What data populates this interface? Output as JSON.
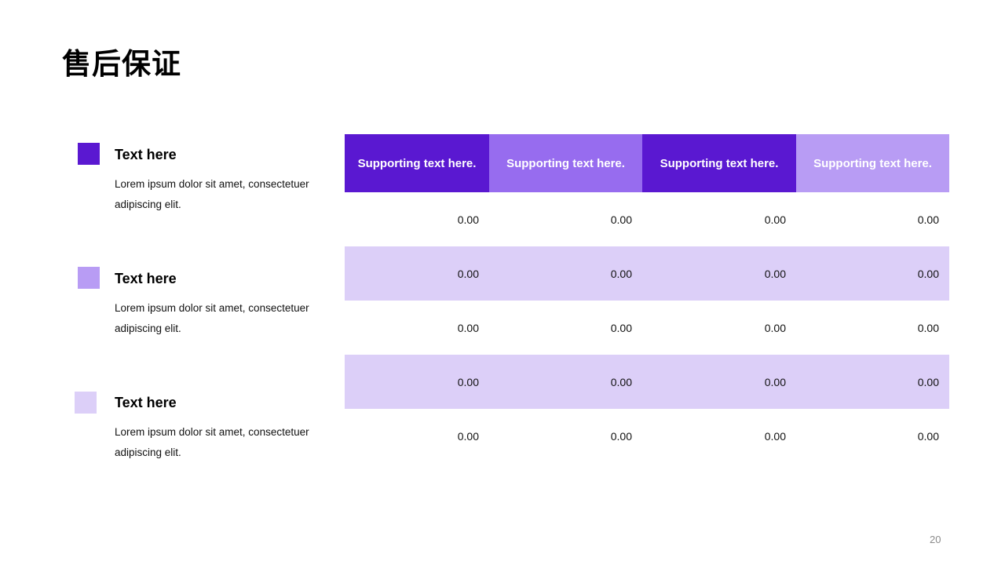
{
  "slide": {
    "title": "售后保证",
    "page_number": "20"
  },
  "legend": {
    "items": [
      {
        "heading": "Text here",
        "description": "Lorem ipsum dolor sit amet, consectetuer adipiscing elit.",
        "color": "#5a18d1"
      },
      {
        "heading": "Text here",
        "description": "Lorem ipsum dolor sit amet, consectetuer adipiscing elit.",
        "color": "#b89cf4"
      },
      {
        "heading": "Text here",
        "description": "Lorem ipsum dolor sit amet, consectetuer adipiscing elit.",
        "color": "#dccff8"
      }
    ]
  },
  "table": {
    "headers": [
      {
        "label": "Supporting text here.",
        "color": "#5a18d1"
      },
      {
        "label": "Supporting text here.",
        "color": "#976cef"
      },
      {
        "label": "Supporting text here.",
        "color": "#5a18d1"
      },
      {
        "label": "Supporting text here.",
        "color": "#b89cf4"
      }
    ],
    "shaded_row_color": "#dccff8",
    "rows": [
      [
        "0.00",
        "0.00",
        "0.00",
        "0.00"
      ],
      [
        "0.00",
        "0.00",
        "0.00",
        "0.00"
      ],
      [
        "0.00",
        "0.00",
        "0.00",
        "0.00"
      ],
      [
        "0.00",
        "0.00",
        "0.00",
        "0.00"
      ],
      [
        "0.00",
        "0.00",
        "0.00",
        "0.00"
      ]
    ]
  }
}
